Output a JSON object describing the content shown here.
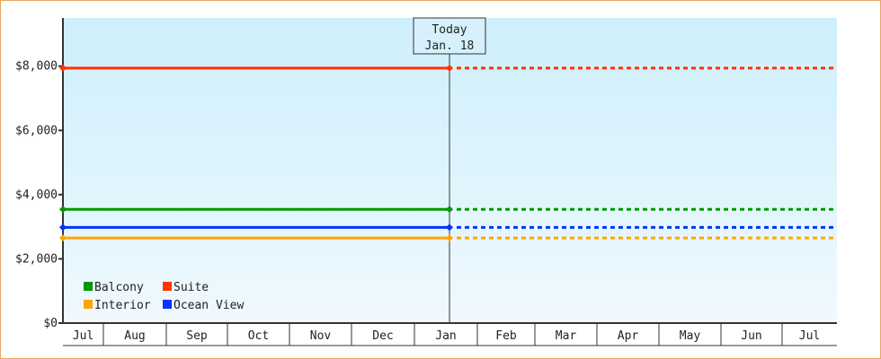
{
  "chart_data": {
    "type": "line",
    "title": "",
    "xlabel": "",
    "ylabel": "",
    "ylim": [
      0,
      9500
    ],
    "y_ticks": [
      "$0",
      "$2,000",
      "$4,000",
      "$6,000",
      "$8,000"
    ],
    "y_tick_values": [
      0,
      2000,
      4000,
      6000,
      8000
    ],
    "x_ticks": [
      "Jul",
      "Aug",
      "Sep",
      "Oct",
      "Nov",
      "Dec",
      "Jan",
      "Feb",
      "Mar",
      "Apr",
      "May",
      "Jun",
      "Jul"
    ],
    "grid": false,
    "legend_placement": "bottom-left",
    "today_marker": {
      "line1": "Today",
      "line2": "Jan. 18"
    },
    "series": [
      {
        "name": "Balcony",
        "color": "#009900",
        "x": [
          "Jul",
          "Jan. 18"
        ],
        "values": [
          3540,
          3540
        ],
        "projection": "dotted to end"
      },
      {
        "name": "Suite",
        "color": "#ff3300",
        "x": [
          "Jul",
          "Jan. 18"
        ],
        "values": [
          7940,
          7940
        ],
        "projection": "dotted to end"
      },
      {
        "name": "Interior",
        "color": "#ffa500",
        "x": [
          "Jul",
          "Jan. 18"
        ],
        "values": [
          2650,
          2650
        ],
        "projection": "dotted to end"
      },
      {
        "name": "Ocean View",
        "color": "#0033ff",
        "x": [
          "Jul",
          "Jan. 18"
        ],
        "values": [
          2980,
          2980
        ],
        "projection": "dotted to end"
      }
    ]
  }
}
